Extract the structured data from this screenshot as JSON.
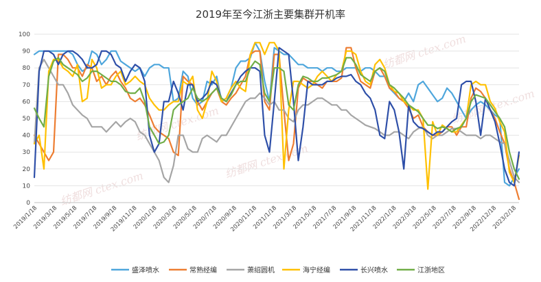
{
  "chart_data": {
    "type": "line",
    "title": "2019年至今江浙主要集群开机率",
    "xlabel": "",
    "ylabel": "",
    "ylim": [
      0,
      100
    ],
    "y_ticks": [
      0,
      10,
      20,
      30,
      40,
      50,
      60,
      70,
      80,
      90,
      100
    ],
    "x_ticks": [
      "2019/1/18",
      "2019/3/18",
      "2019/5/18",
      "2019/7/18",
      "2019/9/18",
      "2019/11/18",
      "2020/1/18",
      "2020/3/18",
      "2020/5/18",
      "2020/7/18",
      "2020/9/18",
      "2020/11/18",
      "2021/1/18",
      "2021/3/18",
      "2021/5/18",
      "2021/7/18",
      "2021/9/18",
      "2021/11/18",
      "2022/1/18",
      "2022/3/18",
      "2022/5/18",
      "2022/7/18",
      "2022/9/18",
      "2022/12/18",
      "2023/2/18"
    ],
    "grid": true,
    "legend_position": "bottom",
    "watermark": "纺都网 ctex.com",
    "series": [
      {
        "name": "盛泽喷水",
        "color": "#4ea6dc",
        "values": [
          88,
          90,
          90,
          90,
          90,
          90,
          90,
          90,
          88,
          82,
          78,
          80,
          90,
          88,
          82,
          85,
          90,
          90,
          84,
          82,
          80,
          78,
          80,
          75,
          80,
          82,
          82,
          80,
          80,
          60,
          62,
          78,
          75,
          62,
          58,
          60,
          72,
          70,
          75,
          60,
          62,
          68,
          80,
          84,
          84,
          86,
          95,
          90,
          72,
          60,
          92,
          90,
          88,
          88,
          85,
          82,
          82,
          80,
          80,
          80,
          78,
          80,
          80,
          78,
          78,
          80,
          80,
          80,
          78,
          80,
          80,
          78,
          75,
          75,
          68,
          65,
          62,
          60,
          65,
          60,
          70,
          72,
          68,
          64,
          60,
          62,
          68,
          65,
          60,
          55,
          50,
          55,
          58,
          60,
          58,
          55,
          52,
          50,
          12,
          10,
          15,
          20
        ]
      },
      {
        "name": "常熟经编",
        "color": "#ed7d31",
        "values": [
          40,
          35,
          30,
          25,
          30,
          88,
          88,
          85,
          80,
          80,
          75,
          82,
          80,
          72,
          75,
          70,
          75,
          78,
          72,
          68,
          62,
          60,
          62,
          58,
          52,
          45,
          42,
          40,
          38,
          30,
          28,
          75,
          72,
          70,
          60,
          55,
          60,
          65,
          68,
          60,
          58,
          62,
          65,
          70,
          75,
          88,
          90,
          90,
          60,
          55,
          88,
          88,
          55,
          25,
          35,
          68,
          74,
          72,
          72,
          70,
          68,
          72,
          72,
          72,
          74,
          92,
          92,
          80,
          72,
          70,
          68,
          78,
          80,
          75,
          68,
          66,
          62,
          60,
          56,
          50,
          52,
          45,
          42,
          40,
          40,
          42,
          45,
          45,
          40,
          45,
          45,
          62,
          68,
          66,
          62,
          55,
          50,
          42,
          35,
          20,
          12,
          2
        ]
      },
      {
        "name": "萧绍圆机",
        "color": "#a5a5a5",
        "values": [
          35,
          80,
          85,
          80,
          75,
          70,
          70,
          65,
          58,
          55,
          52,
          50,
          45,
          45,
          45,
          42,
          45,
          48,
          45,
          48,
          50,
          48,
          42,
          40,
          35,
          30,
          25,
          15,
          12,
          22,
          40,
          40,
          32,
          30,
          30,
          38,
          40,
          38,
          36,
          40,
          40,
          45,
          50,
          55,
          60,
          62,
          62,
          65,
          62,
          58,
          60,
          55,
          55,
          50,
          48,
          55,
          58,
          58,
          60,
          62,
          62,
          60,
          58,
          58,
          55,
          55,
          52,
          50,
          48,
          46,
          45,
          44,
          42,
          40,
          40,
          42,
          42,
          40,
          38,
          42,
          44,
          45,
          40,
          38,
          40,
          40,
          42,
          44,
          44,
          42,
          40,
          40,
          40,
          38,
          40,
          40,
          38,
          36,
          35,
          25,
          15,
          12
        ]
      },
      {
        "name": "海宁经编",
        "color": "#ffc000",
        "values": [
          35,
          40,
          20,
          78,
          85,
          85,
          80,
          78,
          75,
          82,
          60,
          62,
          85,
          80,
          68,
          70,
          70,
          75,
          78,
          70,
          72,
          75,
          72,
          70,
          62,
          58,
          55,
          55,
          58,
          60,
          60,
          72,
          70,
          75,
          55,
          50,
          60,
          78,
          72,
          60,
          62,
          68,
          72,
          68,
          66,
          88,
          95,
          95,
          88,
          95,
          95,
          90,
          20,
          55,
          72,
          72,
          70,
          68,
          70,
          75,
          78,
          75,
          72,
          76,
          78,
          90,
          90,
          88,
          78,
          72,
          70,
          82,
          85,
          80,
          70,
          66,
          65,
          60,
          58,
          55,
          55,
          50,
          8,
          48,
          40,
          46,
          44,
          42,
          42,
          46,
          50,
          70,
          72,
          70,
          70,
          60,
          56,
          48,
          42,
          18,
          12,
          28
        ]
      },
      {
        "name": "长兴喷水",
        "color": "#2e4fa8",
        "values": [
          15,
          78,
          90,
          90,
          88,
          82,
          88,
          90,
          90,
          88,
          85,
          80,
          80,
          82,
          90,
          90,
          88,
          82,
          80,
          72,
          78,
          82,
          80,
          72,
          40,
          30,
          35,
          60,
          60,
          72,
          65,
          55,
          70,
          70,
          60,
          62,
          65,
          72,
          70,
          62,
          60,
          65,
          70,
          75,
          78,
          80,
          80,
          78,
          40,
          30,
          60,
          92,
          90,
          88,
          60,
          25,
          45,
          72,
          70,
          70,
          70,
          72,
          72,
          74,
          75,
          75,
          76,
          72,
          70,
          65,
          62,
          55,
          40,
          38,
          60,
          55,
          42,
          20,
          58,
          48,
          45,
          44,
          42,
          40,
          42,
          42,
          45,
          48,
          50,
          70,
          72,
          72,
          60,
          40,
          62,
          55,
          48,
          35,
          20,
          12,
          10,
          30
        ]
      },
      {
        "name": "江浙地区",
        "color": "#70ad47",
        "values": [
          56,
          50,
          45,
          75,
          84,
          86,
          82,
          80,
          78,
          76,
          72,
          74,
          78,
          78,
          76,
          74,
          72,
          72,
          70,
          66,
          65,
          65,
          68,
          60,
          45,
          40,
          35,
          36,
          40,
          55,
          58,
          60,
          62,
          68,
          62,
          60,
          62,
          65,
          68,
          62,
          60,
          64,
          70,
          72,
          72,
          80,
          84,
          82,
          65,
          60,
          80,
          80,
          78,
          58,
          55,
          70,
          75,
          74,
          72,
          72,
          74,
          74,
          75,
          76,
          78,
          86,
          86,
          82,
          76,
          74,
          72,
          78,
          80,
          78,
          70,
          68,
          65,
          62,
          58,
          56,
          54,
          50,
          46,
          46,
          44,
          45,
          44,
          42,
          44,
          45,
          50,
          60,
          64,
          63,
          62,
          58,
          54,
          50,
          45,
          30,
          20,
          14
        ]
      }
    ]
  }
}
